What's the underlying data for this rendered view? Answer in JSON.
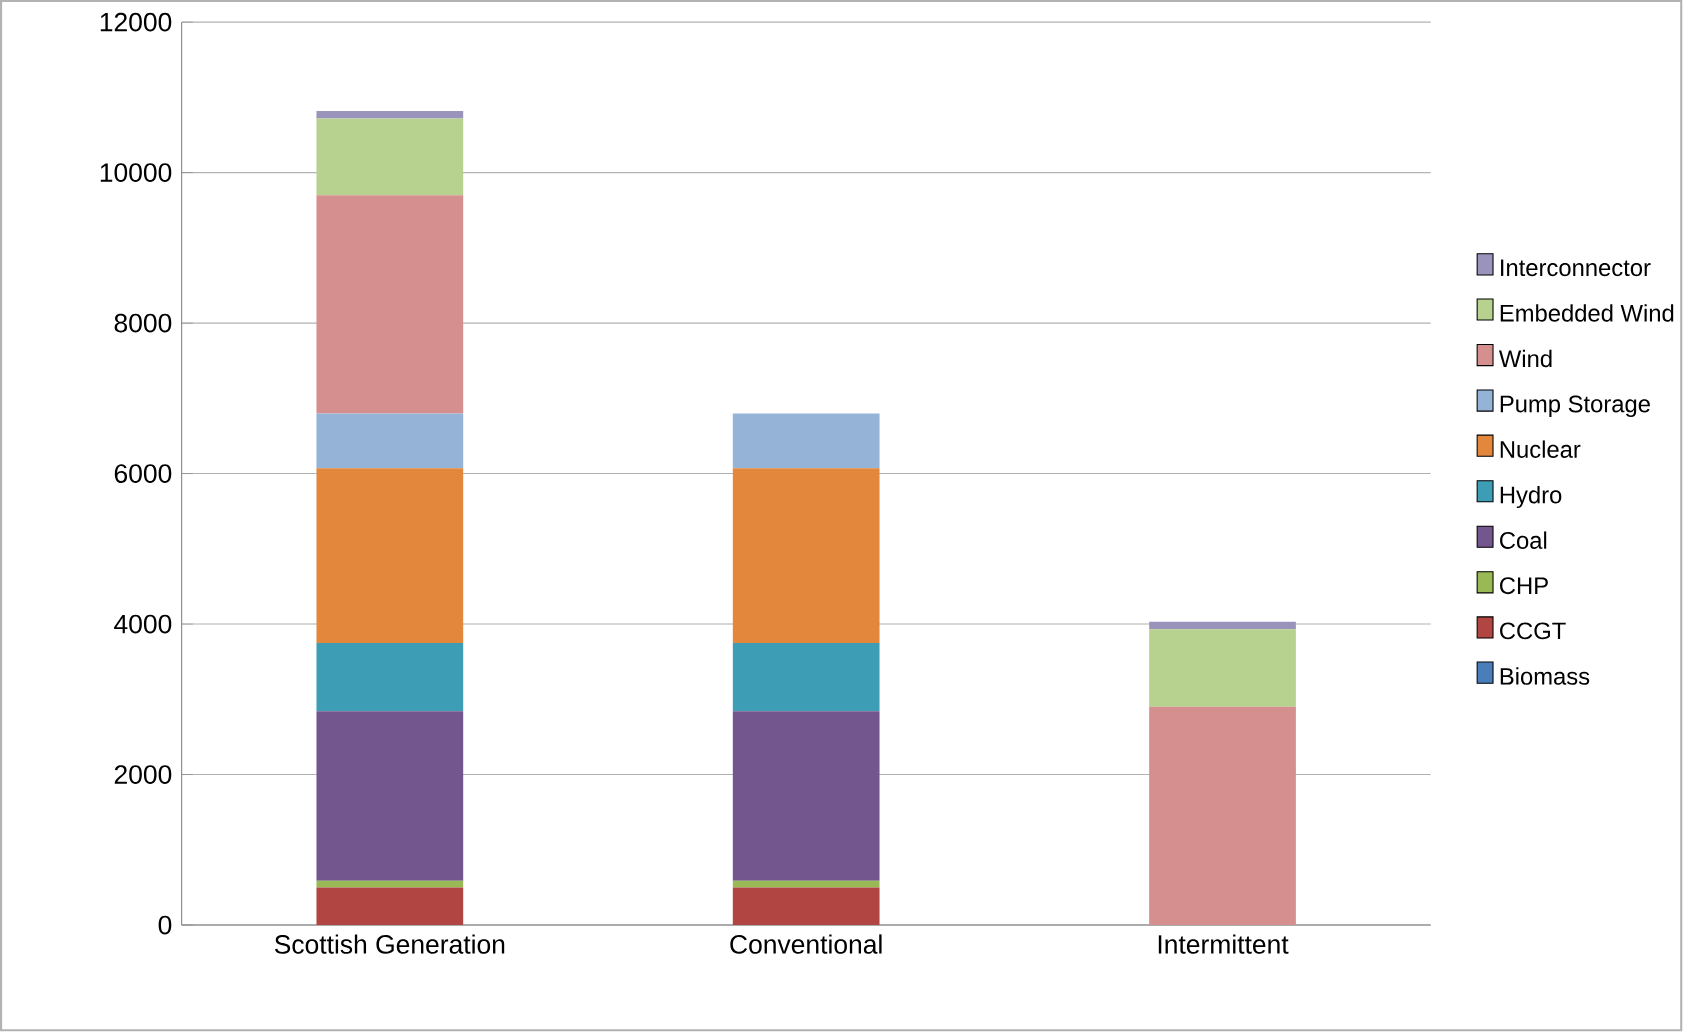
{
  "chart_data": {
    "type": "bar",
    "stacked": true,
    "categories": [
      "Scottish Generation",
      "Conventional",
      "Intermittent"
    ],
    "series": [
      {
        "name": "Biomass",
        "color": "#4a7ebb",
        "values": [
          0,
          0,
          null
        ]
      },
      {
        "name": "CCGT",
        "color": "#b04541",
        "values": [
          500,
          500,
          null
        ]
      },
      {
        "name": "CHP",
        "color": "#98b954",
        "values": [
          90,
          90,
          null
        ]
      },
      {
        "name": "Coal",
        "color": "#74568f",
        "values": [
          2250,
          2250,
          null
        ]
      },
      {
        "name": "Hydro",
        "color": "#3d9db5",
        "values": [
          910,
          910,
          null
        ]
      },
      {
        "name": "Nuclear",
        "color": "#e2873c",
        "values": [
          2320,
          2320,
          null
        ]
      },
      {
        "name": "Pump Storage",
        "color": "#95b3d7",
        "values": [
          730,
          730,
          null
        ]
      },
      {
        "name": "Wind",
        "color": "#d48f8e",
        "values": [
          2900,
          null,
          2900
        ]
      },
      {
        "name": "Embedded Wind",
        "color": "#b7d18f",
        "values": [
          1020,
          null,
          1030
        ]
      },
      {
        "name": "Interconnector",
        "color": "#9a94bd",
        "values": [
          100,
          null,
          100
        ]
      }
    ],
    "ylim": [
      0,
      12000
    ],
    "yticks": [
      0,
      2000,
      4000,
      6000,
      8000,
      10000,
      12000
    ],
    "grid": "y",
    "legend": "right"
  }
}
